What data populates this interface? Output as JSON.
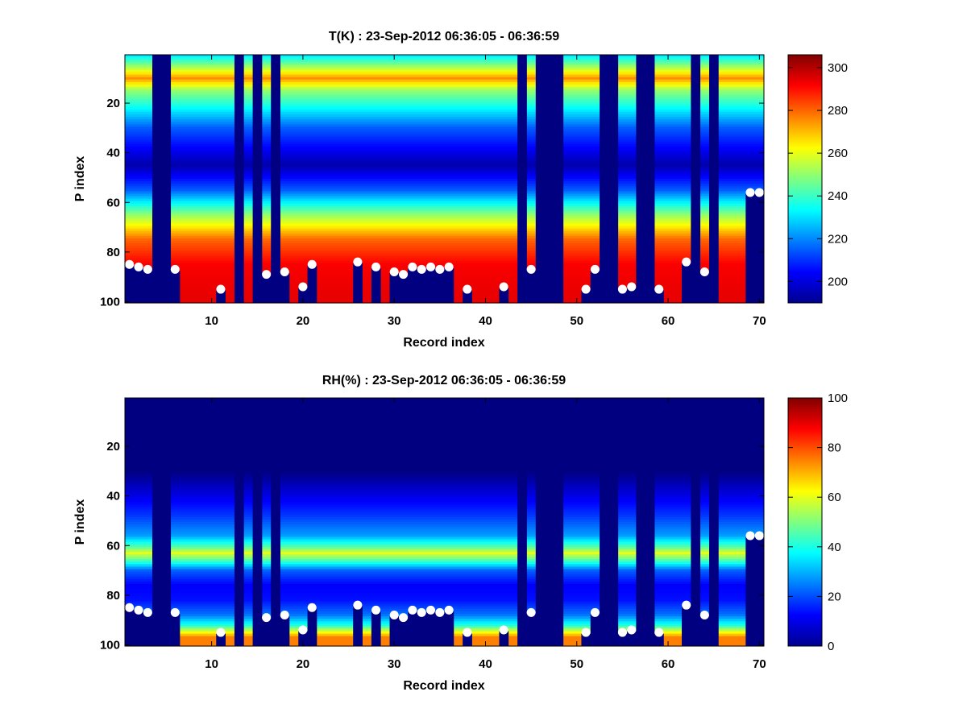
{
  "chart_data": [
    {
      "type": "heatmap",
      "title": "T(K) : 23-Sep-2012 06:36:05 - 06:36:59",
      "xlabel": "Record index",
      "ylabel": "P index",
      "xlim": [
        0.5,
        70.5
      ],
      "ylim": [
        100.5,
        0.5
      ],
      "y_reversed": true,
      "xticks": [
        10,
        20,
        30,
        40,
        50,
        60,
        70
      ],
      "yticks": [
        20,
        40,
        60,
        80,
        100
      ],
      "colorbar": {
        "range": [
          190,
          306
        ],
        "ticks": [
          200,
          220,
          240,
          260,
          280,
          300
        ],
        "colormap": "jet"
      },
      "field": {
        "profile_levels": [
          1,
          5,
          10,
          15,
          30,
          45,
          55,
          65,
          75,
          85,
          97
        ],
        "profile_values": [
          232,
          250,
          275,
          250,
          215,
          195,
          215,
          250,
          280,
          292,
          294
        ]
      },
      "missing_records": [
        4,
        5,
        13,
        15,
        17,
        44,
        46,
        47,
        48,
        53,
        54,
        57,
        58,
        63,
        65
      ],
      "surface_level": {
        "x": [
          1,
          2,
          3,
          6,
          11,
          16,
          18,
          20,
          21,
          26,
          28,
          30,
          31,
          32,
          33,
          34,
          35,
          36,
          38,
          42,
          45,
          51,
          52,
          55,
          56,
          59,
          62,
          64,
          69,
          70
        ],
        "y": [
          85,
          86,
          87,
          87,
          95,
          89,
          88,
          94,
          85,
          84,
          86,
          88,
          89,
          86,
          87,
          86,
          87,
          86,
          95,
          94,
          87,
          95,
          87,
          95,
          94,
          95,
          84,
          88,
          56,
          56
        ]
      }
    },
    {
      "type": "heatmap",
      "title": "RH(%) : 23-Sep-2012 06:36:05 - 06:36:59",
      "xlabel": "Record index",
      "ylabel": "P index",
      "xlim": [
        0.5,
        70.5
      ],
      "ylim": [
        100.5,
        0.5
      ],
      "y_reversed": true,
      "xticks": [
        10,
        20,
        30,
        40,
        50,
        60,
        70
      ],
      "yticks": [
        20,
        40,
        60,
        80,
        100
      ],
      "colorbar": {
        "range": [
          0,
          100
        ],
        "ticks": [
          0,
          20,
          40,
          60,
          80,
          100
        ],
        "colormap": "jet"
      },
      "field": {
        "profile_levels": [
          1,
          30,
          38,
          48,
          56,
          61,
          63,
          66,
          70,
          76,
          82,
          88,
          92,
          95,
          97
        ],
        "profile_values": [
          0,
          0,
          8,
          18,
          28,
          48,
          60,
          45,
          22,
          12,
          14,
          24,
          40,
          62,
          75
        ]
      },
      "missing_records": [
        4,
        5,
        13,
        15,
        17,
        44,
        46,
        47,
        48,
        53,
        54,
        57,
        58,
        63,
        65
      ],
      "surface_level": {
        "x": [
          1,
          2,
          3,
          6,
          11,
          16,
          18,
          20,
          21,
          26,
          28,
          30,
          31,
          32,
          33,
          34,
          35,
          36,
          38,
          42,
          45,
          51,
          52,
          55,
          56,
          59,
          62,
          64,
          69,
          70
        ],
        "y": [
          85,
          86,
          87,
          87,
          95,
          89,
          88,
          94,
          85,
          84,
          86,
          88,
          89,
          86,
          87,
          86,
          87,
          86,
          95,
          94,
          87,
          95,
          87,
          95,
          94,
          95,
          84,
          88,
          56,
          56
        ]
      }
    }
  ]
}
